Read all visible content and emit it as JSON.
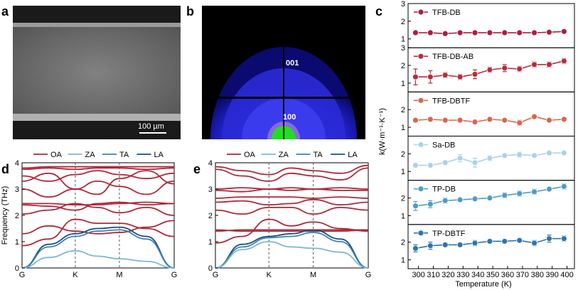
{
  "panel_labels": {
    "a": "a",
    "b": "b",
    "c": "c",
    "d": "d",
    "e": "e"
  },
  "sem": {
    "scale_bar": "100 µm"
  },
  "diffraction": {
    "peak_top": "001",
    "peak_bottom": "100"
  },
  "colors": {
    "OA": "#b0283a",
    "ZA": "#7fb7d4",
    "TA": "#3c82b8",
    "LA": "#1d4e7f",
    "c_series": [
      "#a8203e",
      "#b82c3c",
      "#d9664f",
      "#a9d3e6",
      "#4d9cc8",
      "#2e75b0"
    ]
  },
  "chart_data": [
    {
      "id": "c",
      "type": "line",
      "xlabel": "Temperature (K)",
      "ylabel": "k(W·m⁻¹·K⁻¹)",
      "x_ticks": [
        "300",
        "310",
        "320",
        "330",
        "340",
        "350",
        "360",
        "370",
        "380",
        "390",
        "400"
      ],
      "xlim": [
        293,
        405
      ],
      "x": [
        298,
        308,
        318,
        328,
        338,
        348,
        358,
        368,
        378,
        388,
        398
      ],
      "series": [
        {
          "name": "TFB-DB",
          "ylim": [
            0.5,
            3
          ],
          "y_ticks": [
            "1",
            "2",
            "3"
          ],
          "values": [
            1.35,
            1.35,
            1.3,
            1.35,
            1.35,
            1.35,
            1.35,
            1.35,
            1.35,
            1.38,
            1.42
          ],
          "errors": [
            0.05,
            0.05,
            0.1,
            0.05,
            0.05,
            0.05,
            0.05,
            0.05,
            0.05,
            0.05,
            0.05
          ]
        },
        {
          "name": "TFB-DB-AB",
          "ylim": [
            0.5,
            3
          ],
          "y_ticks": [
            "1",
            "2",
            "3"
          ],
          "values": [
            1.35,
            1.35,
            1.45,
            1.35,
            1.5,
            1.75,
            1.85,
            1.8,
            2.05,
            2.05,
            2.25
          ],
          "errors": [
            0.45,
            0.35,
            0.15,
            0.15,
            0.25,
            0.15,
            0.2,
            0.15,
            0.15,
            0.15,
            0.15
          ]
        },
        {
          "name": "TFB-DBTF",
          "ylim": [
            0.5,
            3
          ],
          "y_ticks": [
            "1",
            "2"
          ],
          "values": [
            1.4,
            1.45,
            1.4,
            1.4,
            1.3,
            1.45,
            1.4,
            1.25,
            1.6,
            1.4,
            1.45
          ],
          "errors": [
            0.1,
            0.1,
            0.1,
            0.1,
            0.1,
            0.1,
            0.1,
            0.15,
            0.1,
            0.1,
            0.1
          ]
        },
        {
          "name": "Sa-DB",
          "ylim": [
            0.5,
            3
          ],
          "y_ticks": [
            "1",
            "2"
          ],
          "values": [
            1.35,
            1.35,
            1.5,
            1.75,
            1.5,
            1.75,
            1.9,
            1.95,
            1.9,
            2.05,
            2.05
          ],
          "errors": [
            0.05,
            0.05,
            0.1,
            0.2,
            0.25,
            0.15,
            0.1,
            0.15,
            0.1,
            0.1,
            0.1
          ]
        },
        {
          "name": "TP-DB",
          "ylim": [
            0.5,
            3
          ],
          "y_ticks": [
            "1",
            "2"
          ],
          "values": [
            1.55,
            1.65,
            1.85,
            1.9,
            1.95,
            2.0,
            2.15,
            2.25,
            2.35,
            2.5,
            2.65
          ],
          "errors": [
            0.25,
            0.2,
            0.15,
            0.1,
            0.1,
            0.1,
            0.15,
            0.15,
            0.15,
            0.1,
            0.15
          ]
        },
        {
          "name": "TP-DBTF",
          "ylim": [
            0.5,
            3
          ],
          "y_ticks": [
            "1",
            "2"
          ],
          "values": [
            1.65,
            1.8,
            1.85,
            1.85,
            1.95,
            2.05,
            2.05,
            2.1,
            1.95,
            2.2,
            2.2
          ],
          "errors": [
            0.2,
            0.2,
            0.1,
            0.1,
            0.15,
            0.1,
            0.1,
            0.1,
            0.15,
            0.2,
            0.15
          ]
        }
      ]
    },
    {
      "id": "d",
      "type": "line",
      "ylabel": "Frequency (THz)",
      "ylim": [
        0,
        4
      ],
      "y_ticks": [
        "0",
        "1",
        "2",
        "3",
        "4"
      ],
      "k_labels": [
        "G",
        "K",
        "M",
        "G"
      ],
      "legend": [
        "OA",
        "ZA",
        "TA",
        "LA"
      ],
      "legend_position": "top",
      "series": [
        {
          "name": "LA",
          "values": [
            0,
            0.9,
            1.3,
            1.5,
            1.55,
            1.2,
            0
          ]
        },
        {
          "name": "TA",
          "values": [
            0,
            0.8,
            1.2,
            1.4,
            1.45,
            1.1,
            0
          ]
        },
        {
          "name": "ZA",
          "values": [
            0,
            0.4,
            0.65,
            0.45,
            0.35,
            0.25,
            0
          ]
        },
        {
          "name": "OA",
          "values": [
            0.85,
            1.1,
            1.85,
            1.7,
            1.7,
            1.5,
            1.2
          ]
        },
        {
          "name": "OA",
          "values": [
            1.3,
            1.6,
            1.4,
            1.3,
            1.35,
            1.55,
            1.8
          ]
        },
        {
          "name": "OA",
          "values": [
            2.05,
            2.2,
            2.45,
            2.3,
            2.1,
            2.3,
            2.0
          ]
        },
        {
          "name": "OA",
          "values": [
            2.4,
            2.35,
            2.2,
            2.45,
            2.5,
            2.4,
            2.45
          ]
        },
        {
          "name": "OA",
          "values": [
            2.45,
            2.45,
            2.4,
            2.4,
            2.45,
            2.5,
            2.45
          ]
        },
        {
          "name": "OA",
          "values": [
            3.0,
            2.7,
            3.0,
            3.3,
            3.1,
            2.8,
            3.3
          ]
        },
        {
          "name": "OA",
          "values": [
            3.3,
            3.6,
            3.0,
            2.8,
            3.4,
            3.7,
            3.2
          ]
        },
        {
          "name": "OA",
          "values": [
            3.5,
            3.3,
            3.55,
            3.7,
            3.55,
            3.4,
            3.6
          ]
        },
        {
          "name": "OA",
          "values": [
            3.75,
            3.8,
            3.75,
            3.8,
            3.8,
            3.75,
            3.8
          ]
        },
        {
          "name": "OA",
          "values": [
            3.8,
            3.85,
            3.85,
            3.85,
            3.85,
            3.85,
            3.85
          ]
        }
      ]
    },
    {
      "id": "e",
      "type": "line",
      "ylim": [
        0,
        4
      ],
      "y_ticks": [
        "0",
        "1",
        "2",
        "3",
        "4"
      ],
      "k_labels": [
        "G",
        "K",
        "M",
        "G"
      ],
      "legend": [
        "OA",
        "ZA",
        "TA",
        "LA"
      ],
      "legend_position": "top",
      "series": [
        {
          "name": "LA",
          "values": [
            0,
            0.9,
            1.2,
            1.3,
            1.45,
            1.1,
            0
          ]
        },
        {
          "name": "TA",
          "values": [
            0,
            0.8,
            1.15,
            1.2,
            1.35,
            1.0,
            0
          ]
        },
        {
          "name": "ZA",
          "values": [
            0,
            0.7,
            1.0,
            0.8,
            0.75,
            0.6,
            0
          ]
        },
        {
          "name": "OA",
          "values": [
            0.95,
            1.2,
            1.85,
            1.6,
            1.75,
            1.5,
            1.4
          ]
        },
        {
          "name": "OA",
          "values": [
            1.4,
            1.45,
            1.45,
            1.45,
            1.45,
            1.45,
            1.45
          ]
        },
        {
          "name": "OA",
          "values": [
            1.45,
            1.4,
            1.4,
            1.4,
            1.4,
            1.4,
            1.45
          ]
        },
        {
          "name": "OA",
          "values": [
            2.2,
            2.05,
            2.3,
            2.3,
            2.05,
            2.3,
            2.2
          ]
        },
        {
          "name": "OA",
          "values": [
            2.5,
            2.55,
            2.4,
            2.45,
            2.6,
            2.4,
            2.5
          ]
        },
        {
          "name": "OA",
          "values": [
            2.65,
            2.7,
            2.7,
            2.7,
            2.65,
            2.7,
            2.65
          ]
        },
        {
          "name": "OA",
          "values": [
            2.95,
            2.9,
            3.0,
            2.95,
            3.0,
            2.95,
            2.95
          ]
        },
        {
          "name": "OA",
          "values": [
            3.0,
            3.05,
            3.0,
            3.05,
            3.0,
            3.05,
            3.0
          ]
        },
        {
          "name": "OA",
          "values": [
            3.75,
            3.5,
            3.3,
            3.6,
            3.5,
            3.35,
            3.8
          ]
        },
        {
          "name": "OA",
          "values": [
            3.85,
            3.7,
            3.55,
            3.8,
            3.7,
            3.6,
            3.9
          ]
        }
      ]
    }
  ]
}
